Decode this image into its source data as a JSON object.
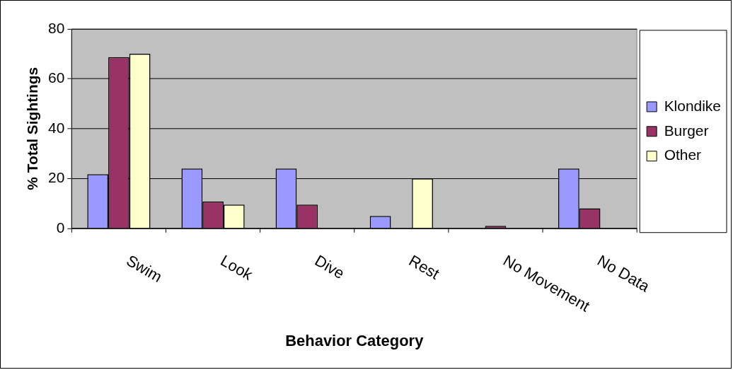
{
  "chart_data": {
    "type": "bar",
    "xlabel": "Behavior Category",
    "ylabel": "% Total Sightings",
    "categories": [
      "Swim",
      "Look",
      "Dive",
      "Rest",
      "No Movement",
      "No Data"
    ],
    "series": [
      {
        "name": "Klondike",
        "color": "#9999ff",
        "values": [
          21.7,
          24,
          24,
          5,
          0,
          24
        ]
      },
      {
        "name": "Burger",
        "color": "#993366",
        "values": [
          68.7,
          10.8,
          9.5,
          0,
          1,
          8
        ]
      },
      {
        "name": "Other",
        "color": "#ffffcc",
        "values": [
          70,
          9.5,
          0,
          20,
          0,
          0
        ]
      }
    ],
    "ylim": [
      0,
      80
    ],
    "yticks": [
      0,
      20,
      40,
      60,
      80
    ],
    "grid": "y",
    "legend": "right"
  }
}
